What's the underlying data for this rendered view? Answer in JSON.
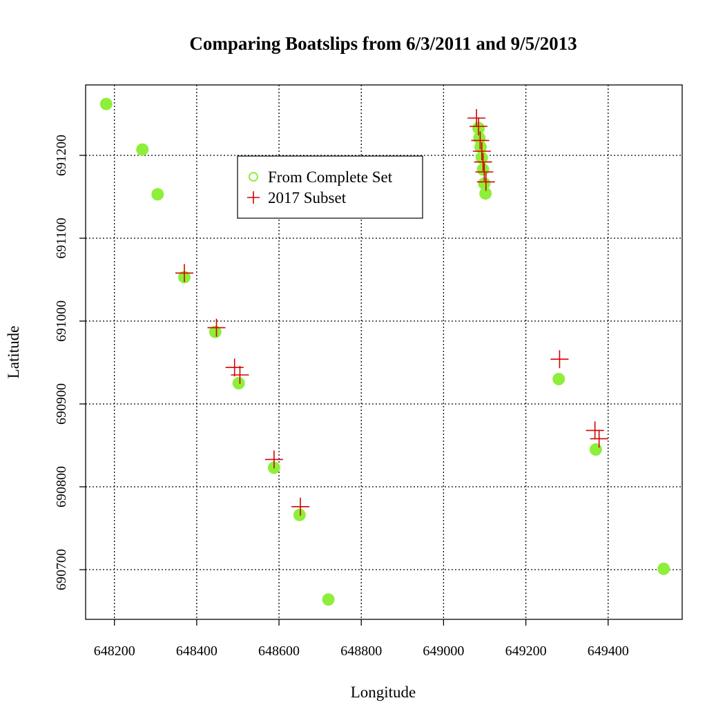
{
  "chart_data": {
    "type": "scatter",
    "title": "Comparing Boatslips from 6/3/2011 and 9/5/2013",
    "xlabel": "Longitude",
    "ylabel": "Latitude",
    "xlim": [
      648130,
      649580
    ],
    "ylim": [
      690640,
      691285
    ],
    "xticks": [
      648200,
      648400,
      648600,
      648800,
      649000,
      649200,
      649400
    ],
    "yticks": [
      690700,
      690800,
      690900,
      691000,
      691100,
      691200
    ],
    "xtick_labels": [
      "648200",
      "648400",
      "648600",
      "648800",
      "649000",
      "649200",
      "649400"
    ],
    "ytick_labels": [
      "690700",
      "690800",
      "690900",
      "691000",
      "691100",
      "691200"
    ],
    "grid": true,
    "legend": {
      "placement": "top-center",
      "entries": [
        "From Complete Set",
        "2017 Subset"
      ]
    },
    "series": [
      {
        "name": "From Complete Set",
        "marker": "filled-circle",
        "color": "#8EEF3A",
        "points": [
          [
            648180,
            691262
          ],
          [
            648268,
            691207
          ],
          [
            648305,
            691153
          ],
          [
            648370,
            691053
          ],
          [
            648445,
            690987
          ],
          [
            648502,
            690925
          ],
          [
            648588,
            690823
          ],
          [
            648650,
            690766
          ],
          [
            648720,
            690664
          ],
          [
            649085,
            691233
          ],
          [
            649087,
            691221
          ],
          [
            649090,
            691210
          ],
          [
            649093,
            691197
          ],
          [
            649096,
            691183
          ],
          [
            649099,
            691166
          ],
          [
            649102,
            691154
          ],
          [
            649280,
            690930
          ],
          [
            649370,
            690845
          ],
          [
            649535,
            690701
          ]
        ]
      },
      {
        "name": "2017 Subset",
        "marker": "plus",
        "color": "#D40000",
        "points": [
          [
            648370,
            691058
          ],
          [
            648448,
            690992
          ],
          [
            648492,
            690944
          ],
          [
            648505,
            690935
          ],
          [
            648588,
            690833
          ],
          [
            648652,
            690776
          ],
          [
            649080,
            691245
          ],
          [
            649085,
            691235
          ],
          [
            649089,
            691218
          ],
          [
            649093,
            691205
          ],
          [
            649096,
            691192
          ],
          [
            649099,
            691180
          ],
          [
            649103,
            691168
          ],
          [
            649282,
            690954
          ],
          [
            649368,
            690868
          ],
          [
            649378,
            690858
          ]
        ]
      }
    ]
  }
}
